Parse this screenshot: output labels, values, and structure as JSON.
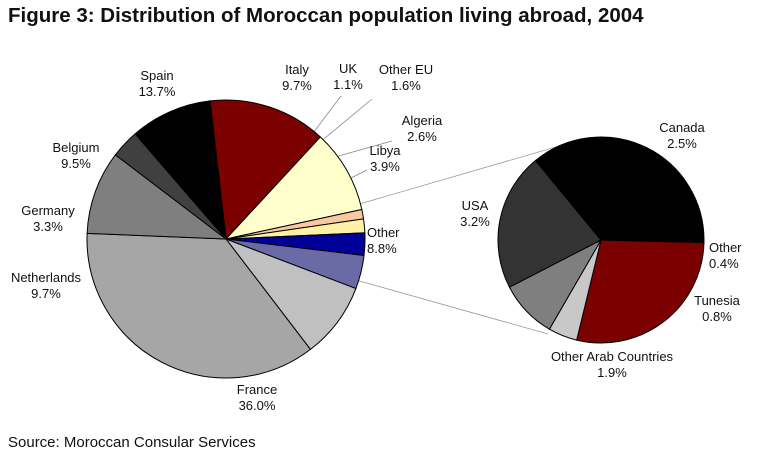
{
  "title": "Figure 3: Distribution of Moroccan population living abroad, 2004",
  "source": "Source: Moroccan Consular Services",
  "chart_data": [
    {
      "type": "pie",
      "title": "",
      "slices": [
        {
          "name": "Spain",
          "value": 13.7,
          "label": "13.7%",
          "color": "#7b0000"
        },
        {
          "name": "Italy",
          "value": 9.7,
          "label": "9.7%",
          "color": "#ffffcc"
        },
        {
          "name": "UK",
          "value": 1.1,
          "label": "1.1%",
          "color": "#f8c8a0"
        },
        {
          "name": "Other EU",
          "value": 1.6,
          "label": "1.6%",
          "color": "#fff0a8"
        },
        {
          "name": "Algeria",
          "value": 2.6,
          "label": "2.6%",
          "color": "#000099"
        },
        {
          "name": "Libya",
          "value": 3.9,
          "label": "3.9%",
          "color": "#6a6aa6"
        },
        {
          "name": "Other",
          "value": 8.8,
          "label": "8.8%",
          "color": "#c0c0c0"
        },
        {
          "name": "France",
          "value": 36.0,
          "label": "36.0%",
          "color": "#a6a6a6"
        },
        {
          "name": "Netherlands",
          "value": 9.7,
          "label": "9.7%",
          "color": "#7f7f7f"
        },
        {
          "name": "Germany",
          "value": 3.3,
          "label": "3.3%",
          "color": "#404040"
        },
        {
          "name": "Belgium",
          "value": 9.5,
          "label": "9.5%",
          "color": "#000000"
        }
      ]
    },
    {
      "type": "pie",
      "title": "",
      "slices": [
        {
          "name": "Canada",
          "value": 2.5,
          "label": "2.5%",
          "color": "#7b0000"
        },
        {
          "name": "Other",
          "value": 0.4,
          "label": "0.4%",
          "color": "#c8c8c8"
        },
        {
          "name": "Tunesia",
          "value": 0.8,
          "label": "0.8%",
          "color": "#7f7f7f"
        },
        {
          "name": "Other Arab Countries",
          "value": 1.9,
          "label": "1.9%",
          "color": "#333333"
        },
        {
          "name": "USA",
          "value": 3.2,
          "label": "3.2%",
          "color": "#000000"
        }
      ]
    }
  ]
}
